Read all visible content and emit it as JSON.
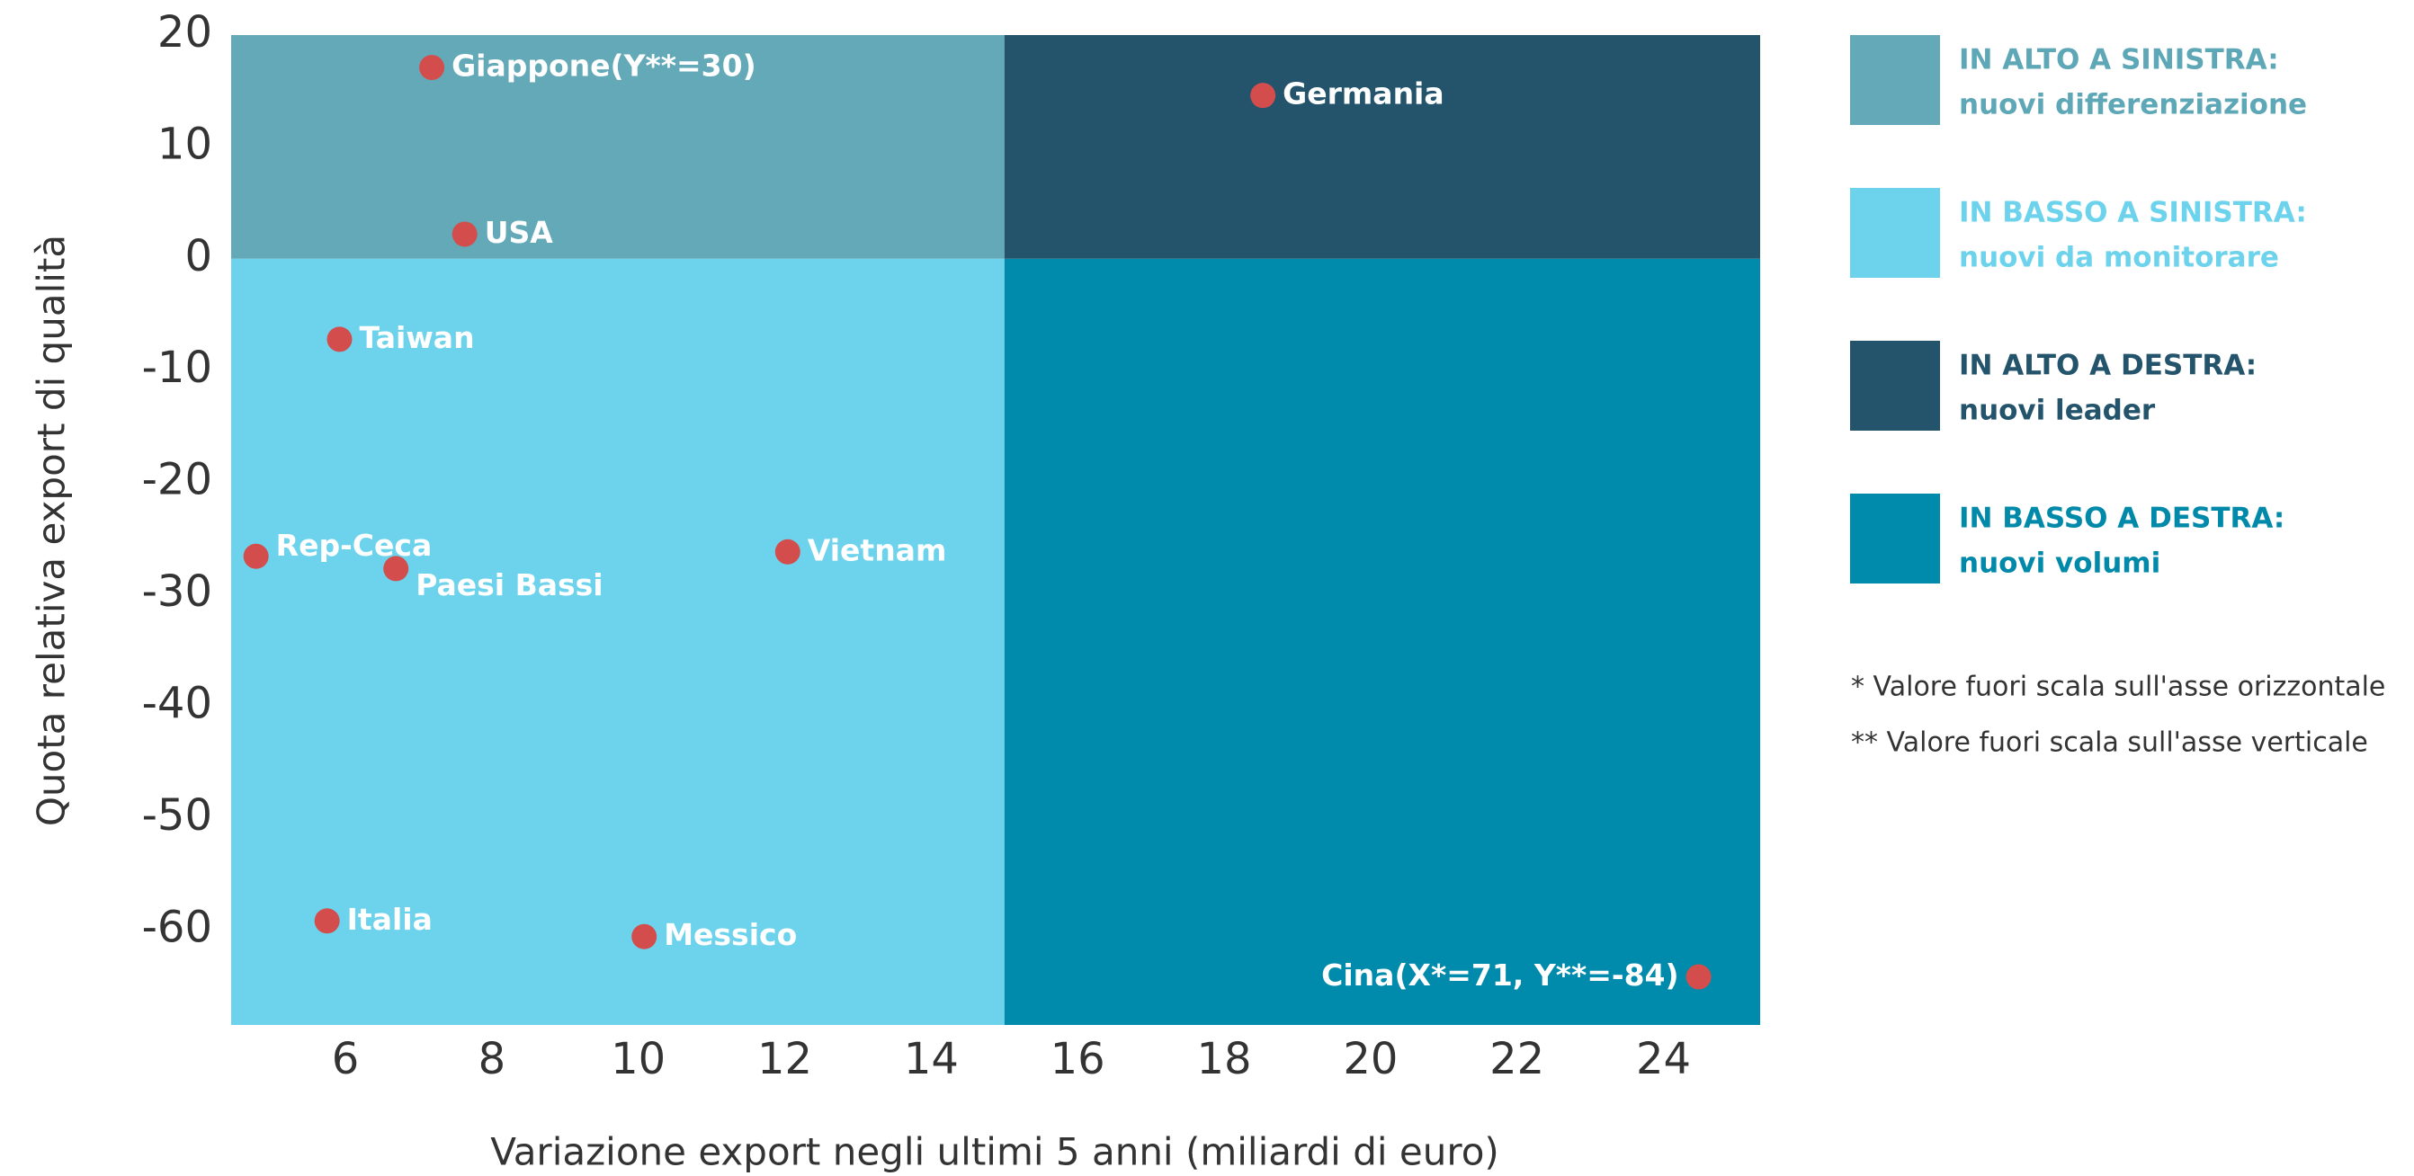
{
  "chart_data": {
    "type": "scatter",
    "xlabel": "Variazione export negli ultimi 5 anni (miliardi di euro)",
    "ylabel": "Quota relativa export di qualità",
    "xlim": [
      4.44,
      25.32
    ],
    "ylim": [
      -68.5,
      20
    ],
    "xticks": [
      6,
      8,
      10,
      12,
      14,
      16,
      18,
      20,
      22,
      24
    ],
    "yticks": [
      20,
      10,
      0,
      -10,
      -20,
      -30,
      -40,
      -50,
      -60
    ],
    "quadrant_x": 15,
    "quadrant_y": 0,
    "point_color": "#d44d4d",
    "points": [
      {
        "label": "Giappone(Y**=30)",
        "x": 7.18,
        "y": 17.1
      },
      {
        "label": "Germania",
        "x": 18.53,
        "y": 14.6
      },
      {
        "label": "USA",
        "x": 7.63,
        "y": 2.2
      },
      {
        "label": "Taiwan",
        "x": 5.92,
        "y": -7.2
      },
      {
        "label": "Rep-Ceca",
        "x": 4.78,
        "y": -26.6
      },
      {
        "label": "Paesi Bassi",
        "x": 6.69,
        "y": -27.7
      },
      {
        "label": "Vietnam",
        "x": 12.04,
        "y": -26.2
      },
      {
        "label": "Italia",
        "x": 5.75,
        "y": -59.2
      },
      {
        "label": "Messico",
        "x": 10.08,
        "y": -60.6
      },
      {
        "label": "Cina(X*=71, Y**=-84)",
        "x": 24.48,
        "y": -64.2
      }
    ],
    "quadrants": [
      {
        "title": "IN ALTO A SINISTRA:",
        "subtitle": "nuovi differenziazione",
        "color": "#64a9b8",
        "text_color": "#5ea7b7"
      },
      {
        "title": "IN BASSO A SINISTRA:",
        "subtitle": "nuovi da monitorare",
        "color": "#6dd3ec",
        "text_color": "#6dd3ec"
      },
      {
        "title": "IN ALTO A DESTRA:",
        "subtitle": "nuovi leader",
        "color": "#24546c",
        "text_color": "#24546c"
      },
      {
        "title": "IN BASSO A DESTRA:",
        "subtitle": "nuovi volumi",
        "color": "#008aab",
        "text_color": "#0089a9"
      }
    ],
    "notes": [
      "* Valore fuori scala sull'asse orizzontale",
      "** Valore fuori scala sull'asse verticale"
    ]
  }
}
